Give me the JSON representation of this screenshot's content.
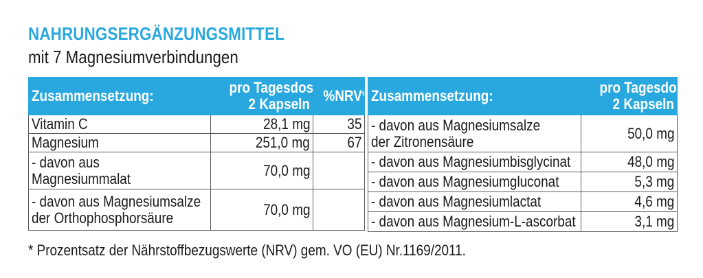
{
  "header": {
    "title": "NAHRUNGSERGÄNZUNGSMITTEL",
    "subtitle": "mit 7 Magnesiumverbindungen"
  },
  "colors": {
    "accent": "#29a8df",
    "border": "#5a5a5a",
    "text": "#1a1a1a"
  },
  "left_table": {
    "col_label": "Zusammensetzung:",
    "col_dose_1": "pro Tagesdosis",
    "col_dose_2": "2 Kapseln",
    "col_nrv": "%NRV*",
    "rows": [
      {
        "label_1": "Vitamin C",
        "label_2": "",
        "dose": "28,1 mg",
        "nrv": "35"
      },
      {
        "label_1": "Magnesium",
        "label_2": "",
        "dose": "251,0 mg",
        "nrv": "67"
      },
      {
        "label_1": "- davon aus",
        "label_2": "Magnesiummalat",
        "dose": "70,0 mg",
        "nrv": ""
      },
      {
        "label_1": "- davon aus Magnesiumsalze",
        "label_2": "der Orthophosphorsäure",
        "dose": "70,0 mg",
        "nrv": ""
      }
    ]
  },
  "right_table": {
    "col_label": "Zusammensetzung:",
    "col_dose_1": "pro Tagesdosis",
    "col_dose_2": "2 Kapseln",
    "rows": [
      {
        "label_1": "- davon aus Magnesiumsalze",
        "label_2": "der Zitronensäure",
        "dose": "50,0 mg"
      },
      {
        "label_1": "- davon aus Magnesiumbisglycinat",
        "label_2": "",
        "dose": "48,0 mg"
      },
      {
        "label_1": "- davon aus Magnesiumgluconat",
        "label_2": "",
        "dose": "5,3 mg"
      },
      {
        "label_1": "- davon aus Magnesiumlactat",
        "label_2": "",
        "dose": "4,6 mg"
      },
      {
        "label_1": "- davon aus Magnesium-L-ascorbat",
        "label_2": "",
        "dose": "3,1 mg"
      }
    ]
  },
  "footnote": "* Prozentsatz der Nährstoffbezugswerte (NRV) gem. VO (EU) Nr.1169/2011."
}
